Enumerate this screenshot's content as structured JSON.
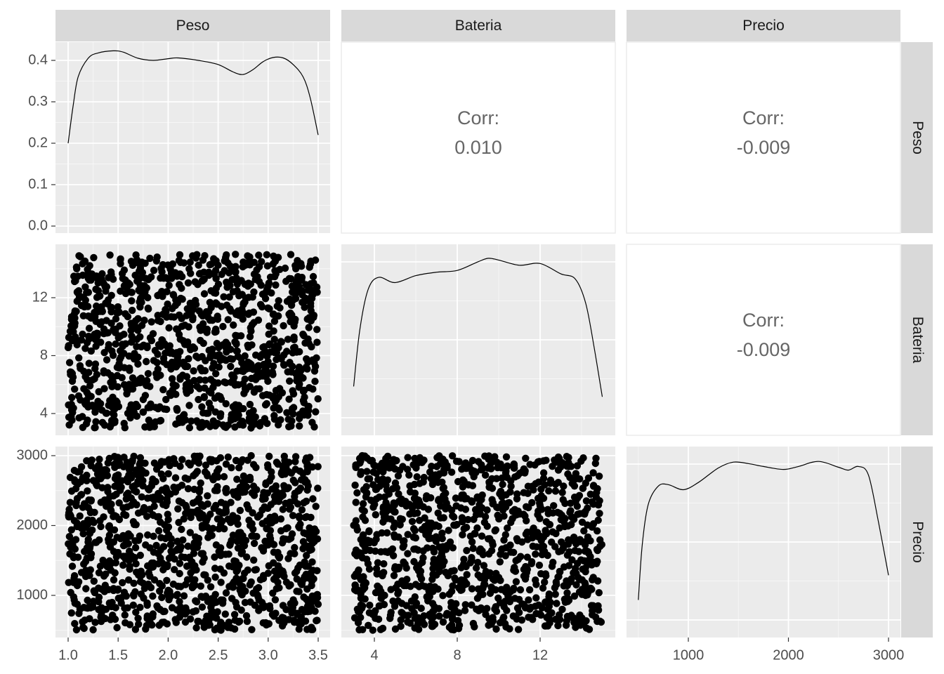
{
  "chart_data": {
    "type": "scatter",
    "layout": "pairs-matrix",
    "variables": [
      "Peso",
      "Bateria",
      "Precio"
    ],
    "ranges": {
      "Peso": [
        1.0,
        3.5
      ],
      "Bateria": [
        3,
        15
      ],
      "Precio": [
        500,
        3000
      ]
    },
    "x_ticks": {
      "Peso": [
        "1.0",
        "1.5",
        "2.0",
        "2.5",
        "3.0",
        "3.5"
      ],
      "Bateria": [
        "4",
        "8",
        "12"
      ],
      "Precio": [
        "1000",
        "2000",
        "3000"
      ]
    },
    "y_ticks": {
      "Peso": [
        "0.0",
        "0.1",
        "0.2",
        "0.3",
        "0.4"
      ],
      "Bateria": [
        "4",
        "8",
        "12"
      ],
      "Precio": [
        "1000",
        "2000",
        "3000"
      ]
    },
    "density_ylim": [
      0,
      0.46
    ],
    "correlations": [
      {
        "x": "Bateria",
        "y": "Peso",
        "label": "Corr:",
        "value": "0.010"
      },
      {
        "x": "Precio",
        "y": "Peso",
        "label": "Corr:",
        "value": "-0.009"
      },
      {
        "x": "Precio",
        "y": "Bateria",
        "label": "Corr:",
        "value": "-0.009"
      }
    ],
    "densities": {
      "Peso": {
        "x": [
          1.0,
          1.05,
          1.1,
          1.2,
          1.3,
          1.45,
          1.55,
          1.7,
          1.85,
          2.0,
          2.1,
          2.3,
          2.5,
          2.65,
          2.75,
          2.85,
          2.95,
          3.05,
          3.15,
          3.25,
          3.35,
          3.42,
          3.5
        ],
        "y": [
          0.2,
          0.29,
          0.36,
          0.405,
          0.418,
          0.423,
          0.42,
          0.405,
          0.4,
          0.404,
          0.406,
          0.4,
          0.39,
          0.372,
          0.366,
          0.378,
          0.397,
          0.407,
          0.406,
          0.39,
          0.36,
          0.31,
          0.22
        ]
      },
      "Bateria": {
        "x": [
          3.0,
          3.3,
          3.7,
          4.2,
          5.0,
          6.0,
          7.0,
          8.0,
          9.0,
          9.5,
          10.0,
          11.0,
          12.0,
          13.0,
          13.7,
          14.2,
          14.6,
          15.0
        ],
        "y": [
          0.062,
          0.095,
          0.118,
          0.125,
          0.122,
          0.126,
          0.128,
          0.129,
          0.134,
          0.136,
          0.135,
          0.132,
          0.133,
          0.127,
          0.124,
          0.11,
          0.085,
          0.056
        ]
      },
      "Precio": {
        "x": [
          500,
          540,
          600,
          700,
          800,
          950,
          1100,
          1300,
          1450,
          1600,
          1750,
          1950,
          2100,
          2300,
          2500,
          2600,
          2700,
          2800,
          2900,
          3000
        ],
        "y": [
          0.000253,
          0.00033,
          0.000385,
          0.00041,
          0.000412,
          0.000405,
          0.000415,
          0.000435,
          0.000443,
          0.000441,
          0.000437,
          0.000433,
          0.000437,
          0.000444,
          0.000436,
          0.000432,
          0.000437,
          0.000425,
          0.00036,
          0.000287
        ]
      }
    },
    "density_ylims": {
      "Peso": [
        0.18,
        0.43
      ],
      "Bateria": [
        0.05,
        0.138
      ],
      "Precio": [
        0.00024,
        0.00045
      ]
    }
  }
}
